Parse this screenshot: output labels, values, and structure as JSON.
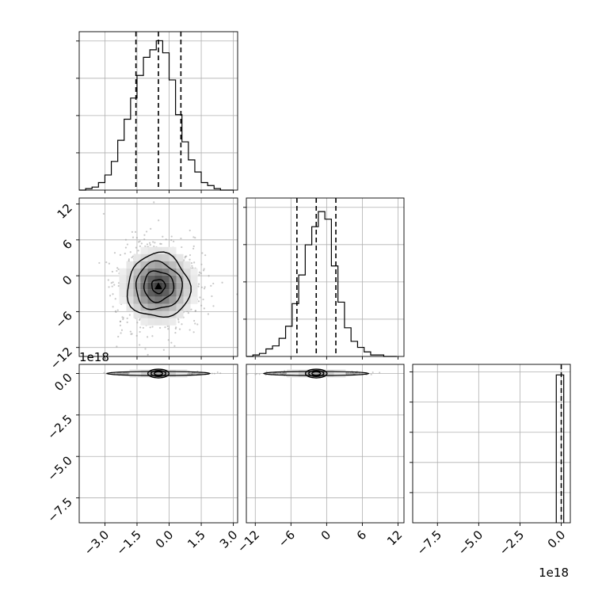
{
  "colors": {
    "line": "#000000",
    "grid": "#b0b0b0",
    "hist2d_dark": "#3a3a3a",
    "scatter": "#9a9a9a",
    "background": "#ffffff"
  },
  "chart_data": {
    "type": "corner",
    "grid": true,
    "panels": [
      {
        "id": "hist-0",
        "type": "histogram",
        "xlim": [
          -4.2,
          3.2
        ],
        "ylim": [
          0,
          1.05
        ],
        "quantile_lines": [
          -1.55,
          -0.5,
          0.55
        ],
        "bins": [
          -4.2,
          -3.9,
          -3.6,
          -3.3,
          -3.0,
          -2.7,
          -2.4,
          -2.1,
          -1.8,
          -1.5,
          -1.2,
          -0.9,
          -0.6,
          -0.3,
          0.0,
          0.3,
          0.6,
          0.9,
          1.2,
          1.5,
          1.8,
          2.1,
          2.4,
          2.7,
          3.0
        ],
        "counts": [
          0.0,
          0.01,
          0.02,
          0.05,
          0.1,
          0.19,
          0.33,
          0.47,
          0.61,
          0.76,
          0.88,
          0.93,
          0.99,
          0.91,
          0.73,
          0.5,
          0.32,
          0.2,
          0.12,
          0.05,
          0.03,
          0.01,
          0.0,
          0.0
        ],
        "yticks_unlabeled": 4
      },
      {
        "id": "hist-1",
        "type": "histogram",
        "xlim": [
          -13.5,
          13
        ],
        "ylim": [
          0,
          1.05
        ],
        "quantile_lines": [
          -5.0,
          -1.75,
          1.55
        ],
        "bins": [
          -13.5,
          -12.4,
          -11.3,
          -10.2,
          -9.1,
          -8.0,
          -6.9,
          -5.8,
          -4.7,
          -3.6,
          -2.5,
          -1.4,
          -0.3,
          0.8,
          1.9,
          3.0,
          4.1,
          5.2,
          6.3,
          7.4,
          8.5,
          9.6,
          10.7,
          11.8
        ],
        "counts": [
          0.0,
          0.01,
          0.02,
          0.05,
          0.07,
          0.12,
          0.2,
          0.35,
          0.54,
          0.74,
          0.86,
          0.96,
          0.91,
          0.6,
          0.36,
          0.19,
          0.1,
          0.06,
          0.03,
          0.01,
          0.01,
          0.0,
          0.0
        ],
        "yticks_unlabeled": 4
      },
      {
        "id": "hist-2",
        "type": "histogram",
        "xlim": [
          -9.0,
          0.55
        ],
        "ylim": [
          0,
          1.05
        ],
        "quantile_lines": [
          0.0
        ],
        "bins": [
          -0.3,
          -0.05,
          0.15
        ],
        "counts": [
          0.98,
          0.98
        ],
        "yticks_unlabeled": 5
      },
      {
        "id": "kde-1-0",
        "type": "2d-histogram",
        "xlim": [
          -4.2,
          3.2
        ],
        "ylim": [
          -13.5,
          13
        ],
        "center": [
          -0.5,
          -1.75
        ],
        "spread": [
          0.9,
          3.3
        ],
        "contour_levels": [
          0.5,
          1.0,
          1.5,
          2.0
        ]
      },
      {
        "id": "kde-2-0",
        "type": "2d-histogram",
        "xlim": [
          -4.2,
          3.2
        ],
        "ylim": [
          -9.0,
          0.55
        ],
        "center": [
          -0.5,
          0.0
        ],
        "spread": [
          0.9,
          0.04
        ]
      },
      {
        "id": "kde-2-1",
        "type": "2d-histogram",
        "xlim": [
          -13.5,
          13
        ],
        "ylim": [
          -9.0,
          0.55
        ],
        "center": [
          -1.75,
          0.0
        ],
        "spread": [
          3.3,
          0.04
        ]
      }
    ],
    "axes": {
      "x0_ticks": [
        "−3.0",
        "−1.5",
        "0.0",
        "1.5",
        "3.0"
      ],
      "x0_tick_values": [
        -3.0,
        -1.5,
        0.0,
        1.5,
        3.0
      ],
      "x1_ticks": [
        "−12",
        "−6",
        "0",
        "6",
        "12"
      ],
      "x1_tick_values": [
        -12,
        -6,
        0,
        6,
        12
      ],
      "x2_ticks": [
        "−7.5",
        "−5.0",
        "−2.5",
        "0.0"
      ],
      "x2_tick_values": [
        -7.5,
        -5.0,
        -2.5,
        0.0
      ],
      "y1_ticks": [
        "−12",
        "−6",
        "0",
        "6",
        "12"
      ],
      "y1_tick_values": [
        -12,
        -6,
        0,
        6,
        12
      ],
      "y2_ticks": [
        "−7.5",
        "−5.0",
        "−2.5",
        "0.0"
      ],
      "y2_tick_values": [
        -7.5,
        -5.0,
        -2.5,
        0.0
      ],
      "y2_offset_text": "1e18",
      "x2_offset_text": "1e18"
    }
  }
}
